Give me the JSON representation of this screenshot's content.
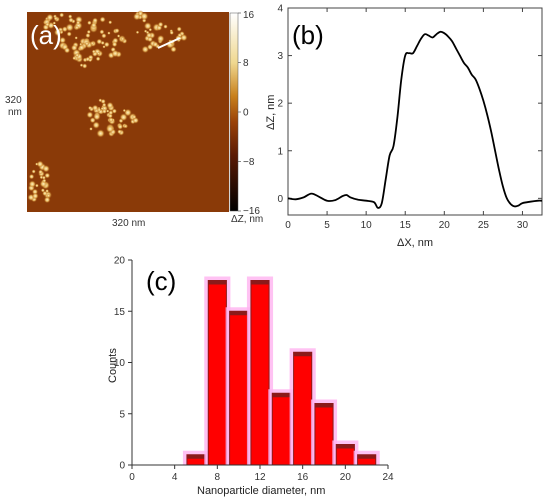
{
  "figure": {
    "panel_a": {
      "letter": "(a)",
      "side_label": "320\nnm",
      "bottom_label": "320 nm",
      "colorbar_ticks": [
        "16",
        "8",
        "0",
        "−8",
        "−16"
      ],
      "colorbar_label": "ΔZ, nm"
    },
    "panel_b": {
      "letter": "(b)"
    },
    "panel_c": {
      "letter": "(c)"
    }
  },
  "chart_data": [
    {
      "type": "heatmap",
      "title": "",
      "colorbar": {
        "min": -16,
        "max": 16,
        "ticks": [
          16,
          8,
          0,
          -8,
          -16
        ],
        "label": "ΔZ, nm"
      },
      "scan_size_label": "320 nm",
      "colors": {
        "background": "#8a3a08",
        "particles": "#e8d08a",
        "scan_line": "#ffffff"
      }
    },
    {
      "type": "line",
      "xlabel": "ΔX, nm",
      "ylabel": "ΔZ, nm",
      "xlim": [
        0,
        32.5
      ],
      "ylim": [
        -0.35,
        4
      ],
      "xticks": [
        0,
        5,
        10,
        15,
        20,
        25,
        30
      ],
      "yticks": [
        0,
        1,
        2,
        3,
        4
      ],
      "series": [
        {
          "x": [
            0,
            1,
            2,
            3,
            4,
            5,
            6,
            7,
            7.5,
            8,
            9,
            10,
            11,
            11.5,
            12,
            12.5,
            13,
            13.5,
            14,
            14.5,
            15,
            15.5,
            16,
            16.5,
            17,
            17.5,
            18,
            18.5,
            19,
            19.5,
            20,
            20.5,
            21,
            21.5,
            22,
            22.5,
            23,
            23.5,
            24,
            24.5,
            25,
            25.5,
            26,
            26.5,
            27,
            27.5,
            28,
            28.5,
            29,
            29.5,
            30,
            31,
            32,
            32.5
          ],
          "y": [
            0,
            -0.02,
            0.02,
            0.1,
            0.03,
            -0.05,
            -0.04,
            0.05,
            0.07,
            0.02,
            -0.03,
            -0.05,
            -0.08,
            -0.2,
            -0.1,
            0.4,
            0.9,
            1.1,
            1.7,
            2.5,
            3.0,
            3.05,
            3.05,
            3.2,
            3.35,
            3.45,
            3.42,
            3.38,
            3.45,
            3.5,
            3.47,
            3.4,
            3.3,
            3.15,
            3.0,
            2.85,
            2.75,
            2.6,
            2.5,
            2.3,
            2.05,
            1.75,
            1.4,
            1.0,
            0.6,
            0.25,
            0.0,
            -0.12,
            -0.17,
            -0.15,
            -0.1,
            -0.07,
            -0.05,
            -0.05
          ],
          "color": "#000000"
        }
      ]
    },
    {
      "type": "bar",
      "xlabel": "Nanoparticle diameter, nm",
      "ylabel": "Counts",
      "xlim": [
        0,
        24
      ],
      "ylim": [
        0,
        20
      ],
      "xticks": [
        0,
        4,
        8,
        12,
        16,
        20,
        24
      ],
      "yticks": [
        0,
        5,
        10,
        15,
        20
      ],
      "bin_width": 2,
      "bin_centers": [
        6,
        8,
        10,
        12,
        14,
        16,
        18,
        20,
        22
      ],
      "values": [
        1,
        18,
        15,
        18,
        7,
        11,
        6,
        2,
        1
      ],
      "colors": {
        "bar": "#ff0000",
        "bar_edge": "#8b1a1a",
        "shadow": "#ffb3f0"
      }
    }
  ]
}
